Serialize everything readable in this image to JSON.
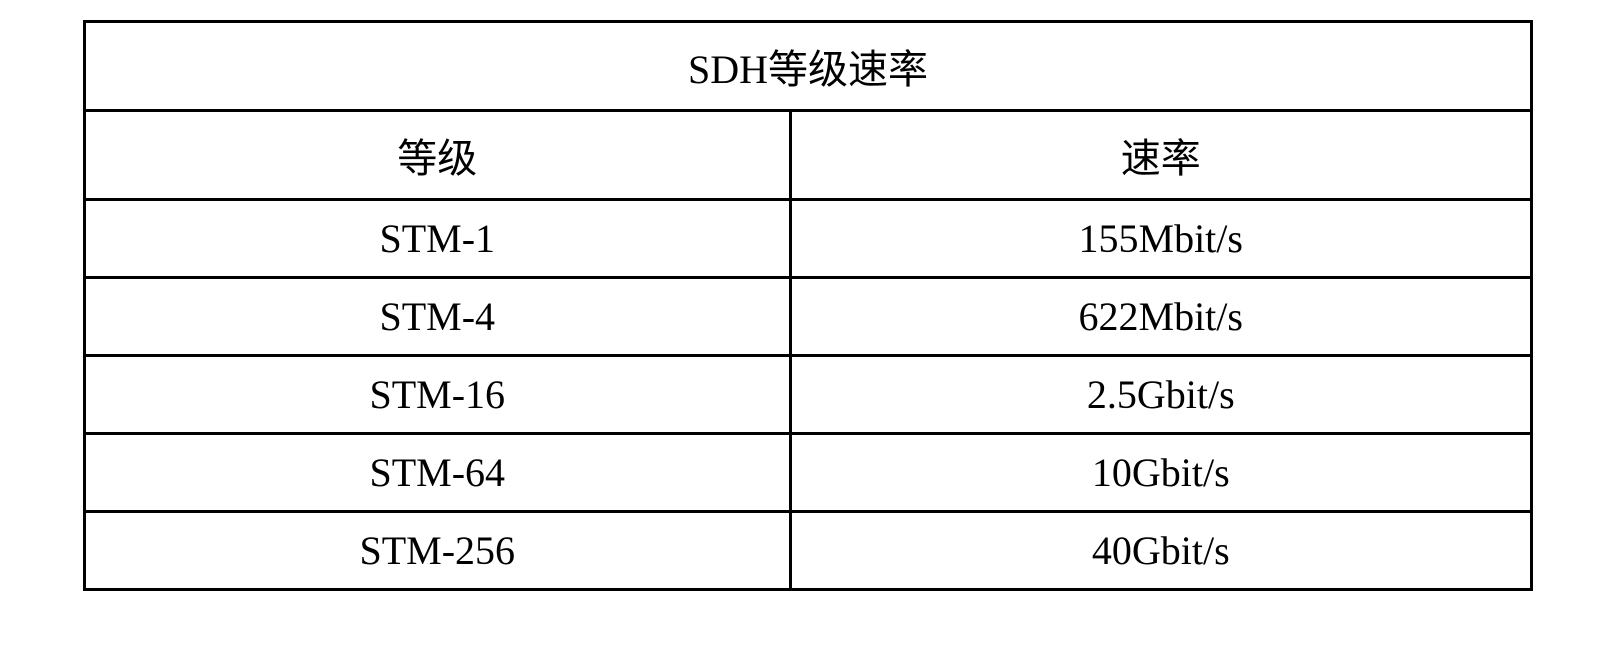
{
  "table": {
    "type": "table",
    "title": "SDH等级速率",
    "columns": [
      "等级",
      "速率"
    ],
    "rows": [
      [
        "STM-1",
        "155Mbit/s"
      ],
      [
        "STM-4",
        "622Mbit/s"
      ],
      [
        "STM-16",
        "2.5Gbit/s"
      ],
      [
        "STM-64",
        "10Gbit/s"
      ],
      [
        "STM-256",
        "40Gbit/s"
      ]
    ],
    "border_color": "#000000",
    "border_width": 3,
    "background_color": "#ffffff",
    "text_color": "#000000",
    "font_size": 40,
    "font_family": "Times New Roman, SimSun, serif",
    "text_align": "center"
  }
}
